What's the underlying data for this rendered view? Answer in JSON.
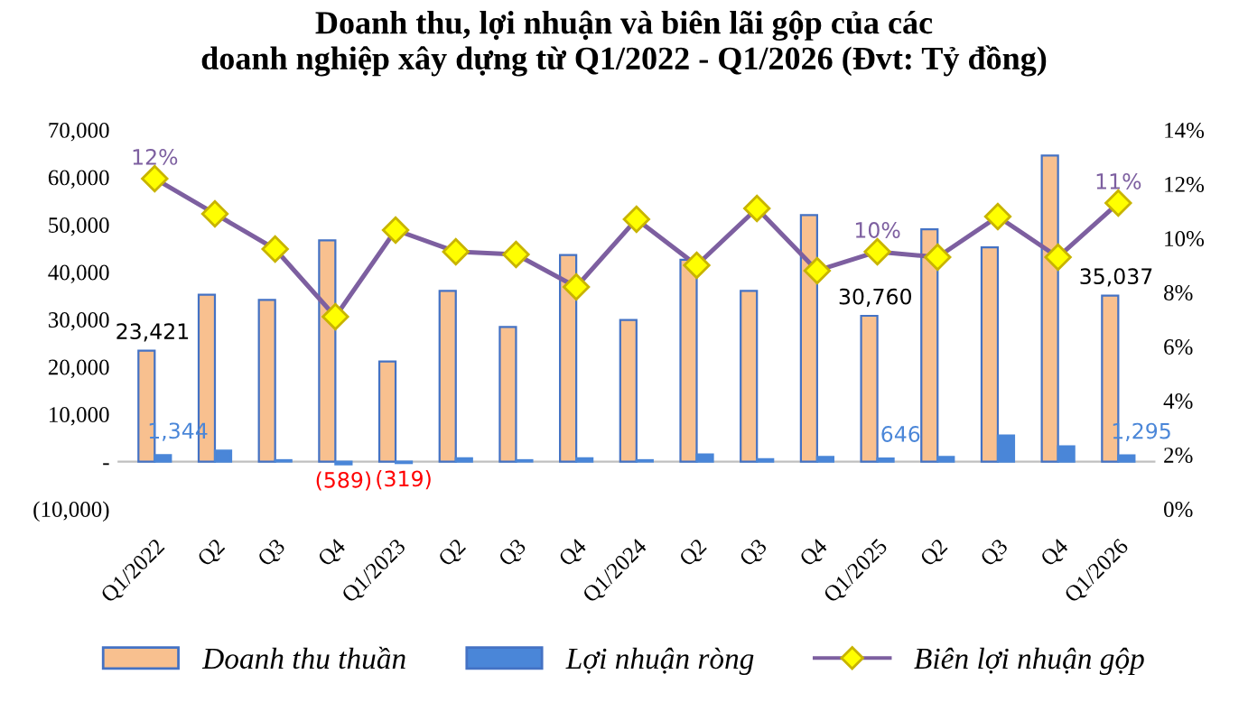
{
  "chart_data": {
    "type": "bar",
    "title": "Doanh thu, lợi nhuận và biên lãi gộp của các\ndoanh nghiệp xây dựng từ Q1/2022 - Q1/2026 (Đvt: Tỷ đồng)",
    "categories": [
      "Q1/2022",
      "Q2",
      "Q3",
      "Q4",
      "Q1/2023",
      "Q2",
      "Q3",
      "Q4",
      "Q1/2024",
      "Q2",
      "Q3",
      "Q4",
      "Q1/2025",
      "Q2",
      "Q3",
      "Q4",
      "Q1/2026"
    ],
    "series": [
      {
        "name": "Doanh thu thuần",
        "color": "#f8c08f",
        "values": [
          23421,
          35200,
          34100,
          46700,
          21100,
          36000,
          28400,
          43600,
          29900,
          42600,
          36000,
          52000,
          30760,
          49000,
          45200,
          64600,
          35037
        ],
        "value_labels": [
          "23,421",
          null,
          null,
          null,
          null,
          null,
          null,
          null,
          null,
          null,
          null,
          null,
          "30,760",
          null,
          null,
          null,
          "35,037"
        ]
      },
      {
        "name": "Lợi nhuận ròng",
        "color": "#4a86d8",
        "values": [
          1344,
          2300,
          300,
          -589,
          -319,
          700,
          300,
          700,
          300,
          1500,
          500,
          1000,
          646,
          1000,
          5500,
          3200,
          1295
        ],
        "value_labels": [
          "1,344",
          null,
          null,
          "(589)",
          "(319)",
          null,
          null,
          null,
          null,
          null,
          null,
          null,
          "646",
          null,
          null,
          null,
          "1,295"
        ]
      },
      {
        "name": "Biên lợi nhuận gộp",
        "type": "line",
        "axis": "y2",
        "color": "#7d5fa0",
        "marker": "diamond",
        "values": [
          12.2,
          10.9,
          9.6,
          7.1,
          10.3,
          9.5,
          9.4,
          8.2,
          10.7,
          9.0,
          11.1,
          8.8,
          9.5,
          9.3,
          10.8,
          9.3,
          11.3
        ],
        "value_labels": [
          "12%",
          null,
          null,
          null,
          null,
          null,
          null,
          null,
          null,
          null,
          null,
          null,
          "10%",
          null,
          null,
          null,
          "11%"
        ]
      }
    ],
    "ylim": [
      -10000,
      70000
    ],
    "yticks": [
      {
        "value": -10000,
        "label": "(10,000)"
      },
      {
        "value": 0,
        "label": "-"
      },
      {
        "value": 10000,
        "label": "10,000"
      },
      {
        "value": 20000,
        "label": "20,000"
      },
      {
        "value": 30000,
        "label": "30,000"
      },
      {
        "value": 40000,
        "label": "40,000"
      },
      {
        "value": 50000,
        "label": "50,000"
      },
      {
        "value": 60000,
        "label": "60,000"
      },
      {
        "value": 70000,
        "label": "70,000"
      }
    ],
    "y2lim": [
      0,
      14
    ],
    "y2ticks": [
      {
        "value": 0,
        "label": "0%"
      },
      {
        "value": 2,
        "label": "2%"
      },
      {
        "value": 4,
        "label": "4%"
      },
      {
        "value": 6,
        "label": "6%"
      },
      {
        "value": 8,
        "label": "8%"
      },
      {
        "value": 10,
        "label": "10%"
      },
      {
        "value": 12,
        "label": "12%"
      },
      {
        "value": 14,
        "label": "14%"
      }
    ],
    "legend": "bottom"
  }
}
